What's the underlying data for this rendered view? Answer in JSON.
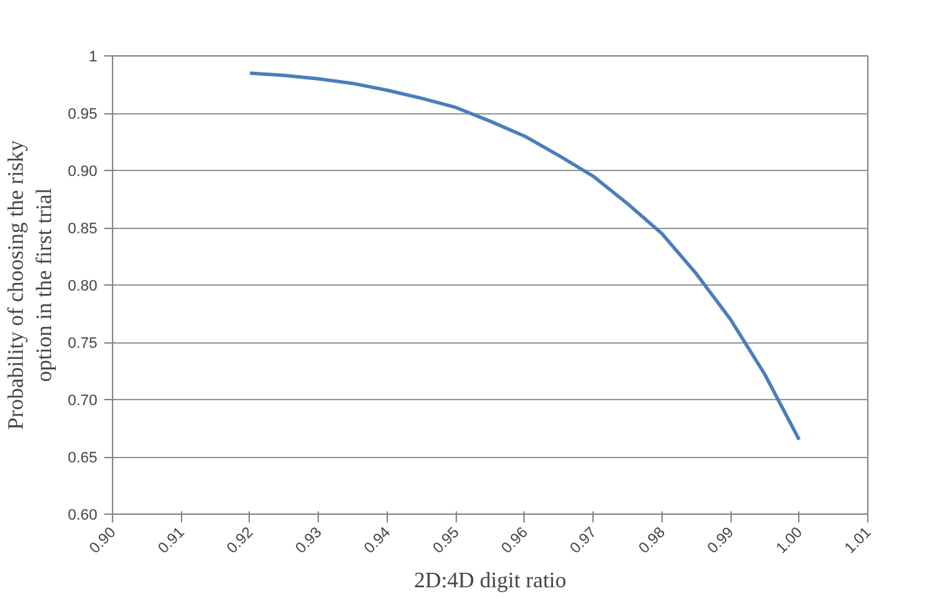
{
  "chart_data": {
    "type": "line",
    "xlabel": "2D:4D digit ratio",
    "ylabel": "Probability of choosing the risky option in the first trial",
    "x": [
      0.92,
      0.925,
      0.93,
      0.935,
      0.94,
      0.945,
      0.95,
      0.955,
      0.96,
      0.965,
      0.97,
      0.975,
      0.98,
      0.985,
      0.99,
      0.995,
      1.0
    ],
    "series": [
      {
        "color": "#4a7ebb",
        "values": [
          0.985,
          0.983,
          0.98,
          0.976,
          0.97,
          0.963,
          0.955,
          0.943,
          0.93,
          0.913,
          0.895,
          0.871,
          0.845,
          0.81,
          0.77,
          0.722,
          0.665
        ]
      }
    ],
    "xlim": [
      0.9,
      1.01
    ],
    "xticks": [
      {
        "value": 0.9,
        "label": "0.90"
      },
      {
        "value": 0.91,
        "label": "0.91"
      },
      {
        "value": 0.92,
        "label": "0.92"
      },
      {
        "value": 0.93,
        "label": "0.93"
      },
      {
        "value": 0.94,
        "label": "0.94"
      },
      {
        "value": 0.95,
        "label": "0.95"
      },
      {
        "value": 0.96,
        "label": "0.96"
      },
      {
        "value": 0.97,
        "label": "0.97"
      },
      {
        "value": 0.98,
        "label": "0.98"
      },
      {
        "value": 0.99,
        "label": "0.99"
      },
      {
        "value": 1.0,
        "label": "1.00"
      },
      {
        "value": 1.01,
        "label": "1.01"
      }
    ],
    "ylim": [
      0.6,
      1
    ],
    "yticks": [
      {
        "value": 0.6,
        "label": "0.60"
      },
      {
        "value": 0.65,
        "label": "0.65"
      },
      {
        "value": 0.7,
        "label": "0.70"
      },
      {
        "value": 0.75,
        "label": "0.75"
      },
      {
        "value": 0.8,
        "label": "0.80"
      },
      {
        "value": 0.85,
        "label": "0.85"
      },
      {
        "value": 0.9,
        "label": "0.90"
      },
      {
        "value": 0.95,
        "label": "0.95"
      },
      {
        "value": 1,
        "label": "1"
      }
    ],
    "grid": "y",
    "marker": "none",
    "line_style": "solid"
  }
}
